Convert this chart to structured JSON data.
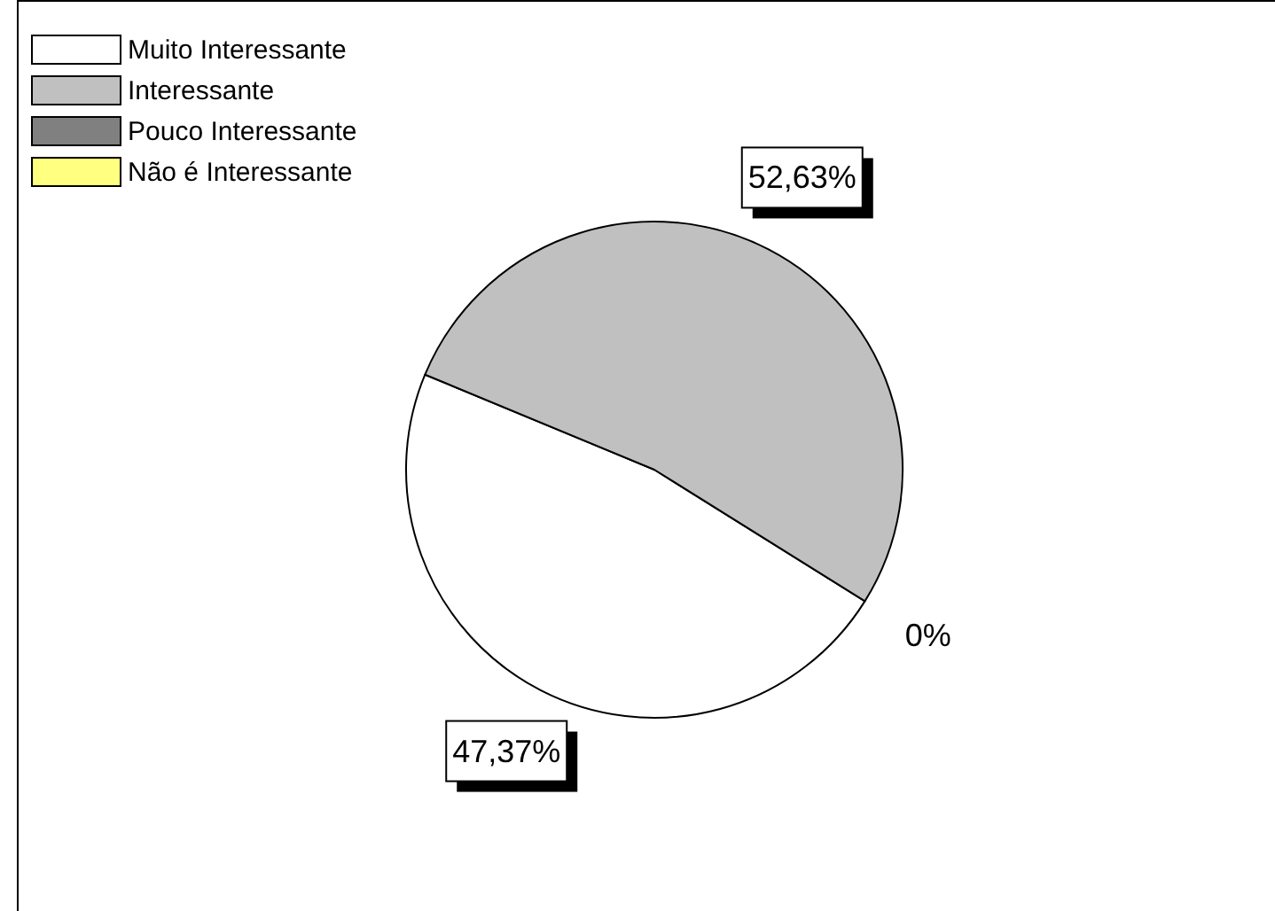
{
  "chart_data": {
    "type": "pie",
    "categories": [
      "Muito Interessante",
      "Interessante",
      "Pouco Interessante",
      "Não é Interessante"
    ],
    "values": [
      47.37,
      52.63,
      0,
      0
    ],
    "colors": [
      "#ffffff",
      "#c0c0c0",
      "#808080",
      "#ffff80"
    ],
    "value_labels": [
      "47,37%",
      "52,63%",
      "0%",
      null
    ],
    "legend": "top left"
  }
}
